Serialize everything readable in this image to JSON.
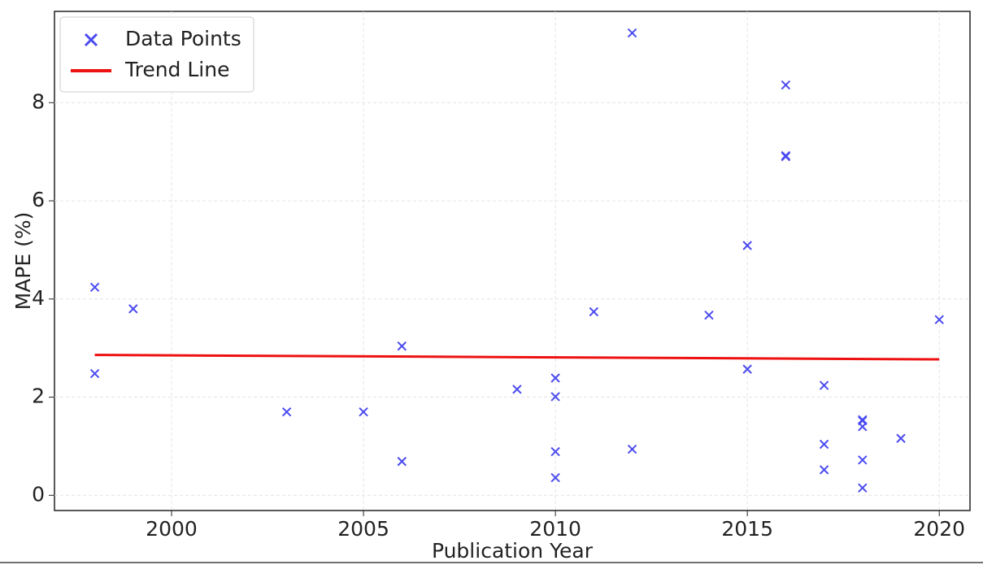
{
  "chart_data": {
    "type": "scatter",
    "xlabel": "Publication Year",
    "ylabel": "MAPE (%)",
    "xlim": [
      1996.95,
      2020.8
    ],
    "xticks": [
      2000,
      2005,
      2010,
      2015,
      2020
    ],
    "ylim": [
      -0.31,
      9.86
    ],
    "yticks": [
      0,
      2,
      4,
      6,
      8
    ],
    "grid": true,
    "legend": "upper left",
    "series": [
      {
        "name": "Data Points",
        "type": "scatter",
        "color": "#4b4bf0",
        "x": [
          1998,
          1998,
          1999,
          2003,
          2005,
          2006,
          2006,
          2009,
          2010,
          2010,
          2010,
          2010,
          2011,
          2012,
          2012,
          2014,
          2015,
          2015,
          2016,
          2016,
          2016,
          2017,
          2017,
          2017,
          2018,
          2018,
          2018,
          2018,
          2018,
          2019,
          2020
        ],
        "values": [
          4.24,
          2.48,
          3.8,
          1.7,
          1.7,
          3.04,
          0.69,
          2.16,
          2.39,
          2.01,
          0.89,
          0.36,
          3.74,
          9.42,
          0.94,
          3.67,
          5.09,
          2.57,
          8.36,
          6.9,
          6.92,
          2.24,
          1.04,
          0.52,
          1.54,
          1.52,
          1.4,
          0.72,
          0.15,
          1.16,
          3.58
        ]
      },
      {
        "name": "Trend Line",
        "type": "line",
        "color": "#ee1111",
        "x": [
          1998,
          2020
        ],
        "values": [
          2.86,
          2.77
        ]
      }
    ]
  }
}
